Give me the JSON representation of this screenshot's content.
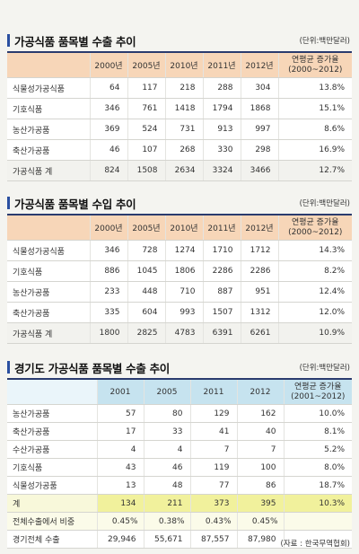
{
  "chart_data": [
    {
      "type": "table",
      "title": "가공식품 품목별 수출 추이",
      "unit": "(단위:백만달러)",
      "columns": [
        "",
        "2000년",
        "2005년",
        "2010년",
        "2011년",
        "2012년",
        "연평균 증가율 (2000~2012)"
      ],
      "col_rate_1": "연평균 증가율",
      "col_rate_2": "(2000~2012)",
      "rows": [
        {
          "label": "식물성가공식품",
          "values": [
            "64",
            "117",
            "218",
            "288",
            "304"
          ],
          "rate": "13.8%"
        },
        {
          "label": "기호식품",
          "values": [
            "346",
            "761",
            "1418",
            "1794",
            "1868"
          ],
          "rate": "15.1%"
        },
        {
          "label": "농산가공품",
          "values": [
            "369",
            "524",
            "731",
            "913",
            "997"
          ],
          "rate": "8.6%"
        },
        {
          "label": "축산가공품",
          "values": [
            "46",
            "107",
            "268",
            "330",
            "298"
          ],
          "rate": "16.9%"
        },
        {
          "label": "가공식품 계",
          "values": [
            "824",
            "1508",
            "2634",
            "3324",
            "3466"
          ],
          "rate": "12.7%"
        }
      ]
    },
    {
      "type": "table",
      "title": "가공식품 품목별 수입 추이",
      "unit": "(단위:백만달러)",
      "columns": [
        "",
        "2000년",
        "2005년",
        "2010년",
        "2011년",
        "2012년",
        "연평균 증가율 (2000~2012)"
      ],
      "col_rate_1": "연평균 증가율",
      "col_rate_2": "(2000~2012)",
      "rows": [
        {
          "label": "식물성가공식품",
          "values": [
            "346",
            "728",
            "1274",
            "1710",
            "1712"
          ],
          "rate": "14.3%"
        },
        {
          "label": "기호식품",
          "values": [
            "886",
            "1045",
            "1806",
            "2286",
            "2286"
          ],
          "rate": "8.2%"
        },
        {
          "label": "농산가공품",
          "values": [
            "233",
            "448",
            "710",
            "887",
            "951"
          ],
          "rate": "12.4%"
        },
        {
          "label": "축산가공품",
          "values": [
            "335",
            "604",
            "993",
            "1507",
            "1312"
          ],
          "rate": "12.0%"
        },
        {
          "label": "가공식품 계",
          "values": [
            "1800",
            "2825",
            "4783",
            "6391",
            "6261"
          ],
          "rate": "10.9%"
        }
      ]
    },
    {
      "type": "table",
      "title": "경기도 가공식품 품목별 수출 추이",
      "unit": "(단위:백만달러)",
      "columns": [
        "",
        "2001",
        "2005",
        "2011",
        "2012",
        "연평균 증가율 (2001~2012)"
      ],
      "col_rate_1": "연평균 증가율",
      "col_rate_2": "(2001~2012)",
      "rows": [
        {
          "label": "농산가공품",
          "values": [
            "57",
            "80",
            "129",
            "162"
          ],
          "rate": "10.0%"
        },
        {
          "label": "축산가공품",
          "values": [
            "17",
            "33",
            "41",
            "40"
          ],
          "rate": "8.1%"
        },
        {
          "label": "수산가공품",
          "values": [
            "4",
            "4",
            "7",
            "7"
          ],
          "rate": "5.2%"
        },
        {
          "label": "기호식품",
          "values": [
            "43",
            "46",
            "119",
            "100"
          ],
          "rate": "8.0%"
        },
        {
          "label": "식물성가공품",
          "values": [
            "13",
            "48",
            "77",
            "86"
          ],
          "rate": "18.7%"
        },
        {
          "label": "계",
          "values": [
            "134",
            "211",
            "373",
            "395"
          ],
          "rate": "10.3%"
        },
        {
          "label": "전체수출에서 비중",
          "values": [
            "0.45%",
            "0.38%",
            "0.43%",
            "0.45%"
          ],
          "rate": ""
        },
        {
          "label": "경기전체 수출",
          "values": [
            "29,946",
            "55,671",
            "87,557",
            "87,980"
          ],
          "rate": ""
        }
      ],
      "highlight_color": "#f1f19c"
    }
  ],
  "source": "(자료 : 한국무역협회)",
  "colors": {
    "accent_bar": "#2a4fa0",
    "header_peach": "#f7d6b8",
    "header_blue": "#c6e3ef",
    "highlight_yellow": "#f1f19c"
  }
}
